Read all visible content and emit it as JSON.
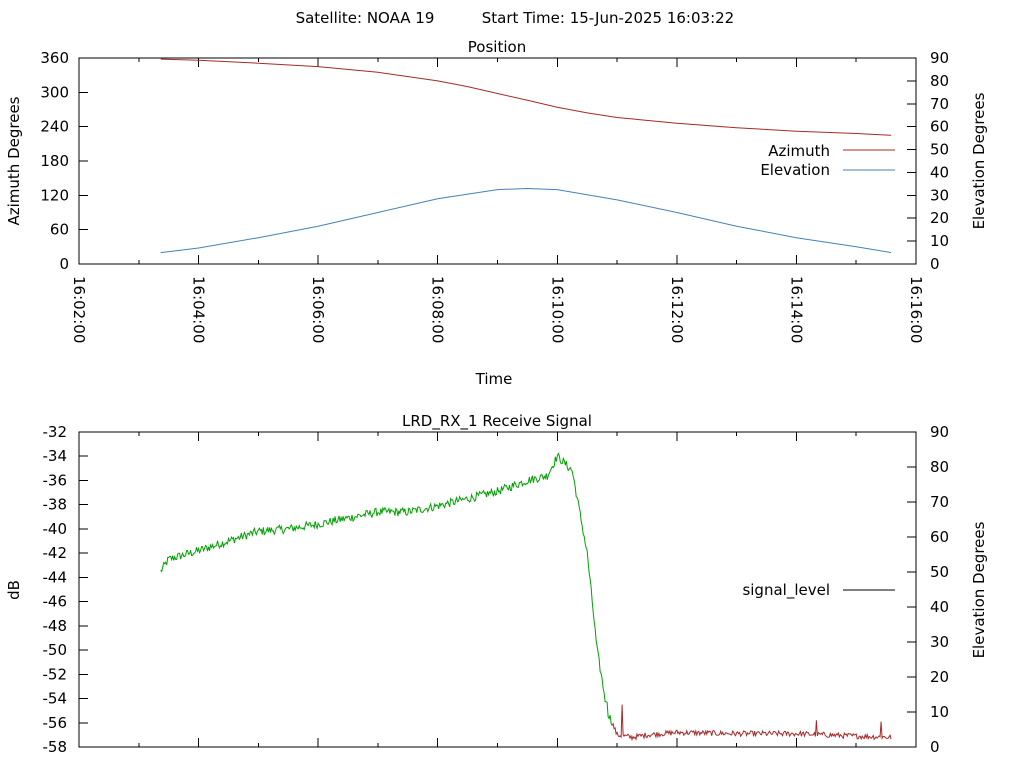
{
  "header": {
    "satellite_label": "Satellite: NOAA 19",
    "start_time_label": "Start Time: 15-Jun-2025 16:03:22"
  },
  "chart_data": [
    {
      "type": "line",
      "title": "Position",
      "xlabel": "Time",
      "ylabel": "Azimuth Degrees",
      "y2label": "Elevation Degrees",
      "xlim": [
        "16:02:00",
        "16:16:00"
      ],
      "xticks": [
        "16:02:00",
        "16:04:00",
        "16:06:00",
        "16:08:00",
        "16:10:00",
        "16:12:00",
        "16:14:00",
        "16:16:00"
      ],
      "ylim": [
        0,
        360
      ],
      "yticks": [
        "0",
        "60",
        "120",
        "180",
        "240",
        "300",
        "360"
      ],
      "y2lim": [
        0,
        90
      ],
      "y2ticks": [
        "0",
        "10",
        "20",
        "30",
        "40",
        "50",
        "60",
        "70",
        "80",
        "90"
      ],
      "legend_position": "right",
      "grid": false,
      "series": [
        {
          "name": "Azimuth",
          "axis": "y1",
          "color": "#a52a2a",
          "x": [
            "16:03:22",
            "16:04:00",
            "16:05:00",
            "16:06:00",
            "16:07:00",
            "16:08:00",
            "16:08:30",
            "16:09:00",
            "16:09:30",
            "16:10:00",
            "16:10:30",
            "16:11:00",
            "16:12:00",
            "16:13:00",
            "16:14:00",
            "16:15:00",
            "16:15:35"
          ],
          "values": [
            358,
            356,
            351,
            345,
            335,
            320,
            310,
            298,
            286,
            274,
            264,
            256,
            246,
            238,
            232,
            228,
            225
          ]
        },
        {
          "name": "Elevation",
          "axis": "y2",
          "color": "#4682b4",
          "x": [
            "16:03:22",
            "16:04:00",
            "16:05:00",
            "16:06:00",
            "16:07:00",
            "16:08:00",
            "16:09:00",
            "16:09:30",
            "16:10:00",
            "16:11:00",
            "16:12:00",
            "16:13:00",
            "16:14:00",
            "16:15:00",
            "16:15:35"
          ],
          "values": [
            5,
            7,
            11.5,
            16.5,
            22.5,
            28.5,
            32.5,
            33,
            32.5,
            28,
            22.5,
            16.5,
            11.5,
            7.5,
            5
          ]
        }
      ]
    },
    {
      "type": "line",
      "title": "LRD_RX_1 Receive Signal",
      "xlabel": "",
      "ylabel": "dB",
      "y2label": "Elevation Degrees",
      "xlim": [
        "16:02:00",
        "16:16:00"
      ],
      "ylim": [
        -58,
        -32
      ],
      "yticks": [
        "-32",
        "-34",
        "-36",
        "-38",
        "-40",
        "-42",
        "-44",
        "-46",
        "-48",
        "-50",
        "-52",
        "-54",
        "-56",
        "-58"
      ],
      "y2lim": [
        0,
        90
      ],
      "y2ticks": [
        "0",
        "10",
        "20",
        "30",
        "40",
        "50",
        "60",
        "70",
        "80",
        "90"
      ],
      "legend_position": "right",
      "grid": false,
      "series": [
        {
          "name": "signal_level",
          "legend_line_color": "#000000",
          "color_high_elevation": "#00a000",
          "color_low_elevation": "#a52a2a",
          "x": [
            "16:03:22",
            "16:03:30",
            "16:04:00",
            "16:04:30",
            "16:05:00",
            "16:05:30",
            "16:06:00",
            "16:06:30",
            "16:07:00",
            "16:07:30",
            "16:08:00",
            "16:08:30",
            "16:09:00",
            "16:09:30",
            "16:09:50",
            "16:10:00",
            "16:10:15",
            "16:10:30",
            "16:10:40",
            "16:10:50",
            "16:11:00",
            "16:11:15",
            "16:11:30",
            "16:12:00",
            "16:13:00",
            "16:14:00",
            "16:15:00",
            "16:15:35"
          ],
          "values": [
            -43.5,
            -42.5,
            -41.8,
            -41,
            -40.2,
            -40,
            -39.6,
            -39.1,
            -38.6,
            -38.6,
            -38.1,
            -37.5,
            -36.9,
            -36,
            -35.6,
            -34,
            -35.2,
            -42,
            -50,
            -55,
            -57,
            -57.2,
            -57,
            -56.8,
            -56.9,
            -56.9,
            -57.1,
            -57.2
          ],
          "spikes": [
            {
              "x": "16:10:50",
              "value": -54.3
            },
            {
              "x": "16:11:05",
              "value": -54.5
            },
            {
              "x": "16:14:20",
              "value": -55.8
            },
            {
              "x": "16:15:25",
              "value": -55.9
            }
          ]
        }
      ]
    }
  ]
}
